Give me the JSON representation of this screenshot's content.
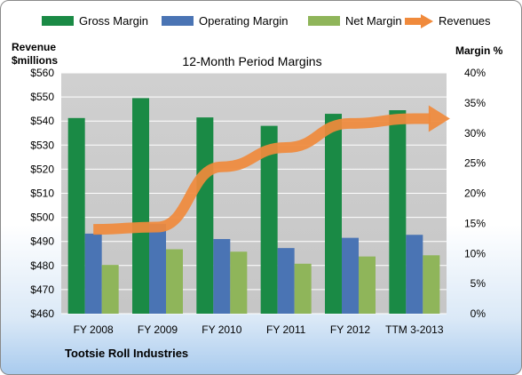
{
  "chart_data": {
    "type": "bar",
    "title": "12-Month Period Margins",
    "company": "Tootsie Roll Industries",
    "left_axis_label_line1": "Revenue",
    "left_axis_label_line2": "$millions",
    "right_axis_label": "Margin %",
    "categories": [
      "FY 2008",
      "FY 2009",
      "FY 2010",
      "FY 2011",
      "FY 2012",
      "TTM 3-2013"
    ],
    "y_left_range": [
      460,
      560
    ],
    "y_left_ticks": [
      "$460",
      "$470",
      "$480",
      "$490",
      "$500",
      "$510",
      "$520",
      "$530",
      "$540",
      "$550",
      "$560"
    ],
    "y_right_range": [
      0,
      40
    ],
    "y_right_ticks": [
      "0%",
      "5%",
      "10%",
      "15%",
      "20%",
      "25%",
      "30%",
      "35%",
      "40%"
    ],
    "legend_position": "top",
    "grid": true,
    "series": [
      {
        "name": "Gross Margin",
        "axis": "right",
        "kind": "bar",
        "color": "#1a8a45",
        "values": [
          32.5,
          35.8,
          32.6,
          31.2,
          33.2,
          33.8
        ]
      },
      {
        "name": "Operating Margin",
        "axis": "right",
        "kind": "bar",
        "color": "#4a74b4",
        "values": [
          13.3,
          14.9,
          12.4,
          10.9,
          12.6,
          13.1
        ]
      },
      {
        "name": "Net Margin",
        "axis": "right",
        "kind": "bar",
        "color": "#8fb55a",
        "values": [
          8.1,
          10.7,
          10.3,
          8.3,
          9.5,
          9.7
        ]
      },
      {
        "name": "Revenues",
        "axis": "left",
        "kind": "line",
        "color": "#f08a3c",
        "values": [
          495,
          496,
          521,
          529,
          539,
          541
        ]
      }
    ]
  }
}
